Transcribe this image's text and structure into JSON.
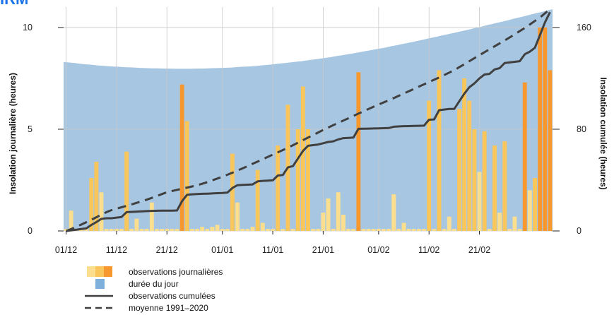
{
  "logo_text": "IRM",
  "colors": {
    "daylight": "#a7c6e2",
    "daylight_legend": "#7fb0dc",
    "bar_light": "#fbdf8f",
    "bar_medium": "#f9c65c",
    "bar_dark": "#f7982e",
    "cumulative": "#404040",
    "normal": "#404040",
    "grid": "#c8c8c8"
  },
  "legend": {
    "daily": "observations journalières",
    "daylength": "durée du jour",
    "cumulative": "observations cumulées",
    "normal": "moyenne 1991–2020"
  },
  "chart_data": {
    "type": "bar",
    "x_ticks": [
      "01/12",
      "11/12",
      "21/12",
      "01/01",
      "11/01",
      "21/01",
      "01/02",
      "11/02",
      "21/02"
    ],
    "x_tick_days": [
      0,
      10,
      20,
      31,
      41,
      51,
      62,
      72,
      82
    ],
    "ylabel": "Insolation journalière (heures)",
    "y2label": "Insolation cumulée (heures)",
    "ylim": [
      0,
      10.9
    ],
    "y2lim": [
      0,
      174.4
    ],
    "y_ticks": [
      0,
      5,
      10
    ],
    "y2_ticks": [
      0,
      80,
      160
    ],
    "grid": true,
    "daily_observations": [
      0.1,
      1.0,
      0.1,
      0.1,
      0.1,
      2.6,
      3.4,
      1.9,
      0.1,
      0.1,
      0.1,
      0.1,
      3.9,
      0.1,
      0.6,
      0.1,
      0.1,
      1.4,
      0.1,
      0.1,
      0.1,
      0.1,
      0.1,
      7.2,
      5.4,
      0.1,
      0.1,
      0.2,
      0.1,
      0.2,
      0.3,
      0.1,
      0.1,
      3.8,
      1.4,
      0.1,
      0.1,
      0.2,
      3.0,
      0.4,
      0.1,
      0.1,
      4.2,
      0.1,
      6.2,
      0.1,
      5.0,
      7.1,
      5.0,
      0.1,
      0.1,
      0.9,
      1.6,
      0.1,
      1.9,
      0.8,
      0.1,
      0.1,
      7.8,
      0.1,
      0.1,
      0.1,
      0.1,
      0.1,
      0.1,
      1.8,
      0.1,
      0.4,
      0.1,
      0.1,
      0.1,
      0.1,
      6.4,
      0.1,
      7.9,
      0.1,
      0.7,
      0.1,
      6.0,
      7.5,
      6.4,
      5.0,
      2.9,
      4.9,
      0.1,
      4.2,
      0.9,
      4.4,
      0.1,
      0.7,
      0.1,
      7.3,
      2.0,
      2.6,
      10.0,
      10.0,
      7.9
    ],
    "daylength": [
      8.3,
      8.28,
      8.25,
      8.22,
      8.19,
      8.17,
      8.14,
      8.12,
      8.1,
      8.08,
      8.07,
      8.05,
      8.04,
      8.03,
      8.01,
      8.0,
      7.99,
      7.99,
      7.98,
      7.98,
      7.97,
      7.97,
      7.97,
      7.97,
      7.98,
      7.98,
      7.99,
      8.0,
      8.01,
      8.02,
      8.03,
      8.05,
      8.07,
      8.08,
      8.1,
      8.12,
      8.15,
      8.17,
      8.2,
      8.23,
      8.26,
      8.29,
      8.32,
      8.35,
      8.39,
      8.43,
      8.46,
      8.5,
      8.54,
      8.59,
      8.63,
      8.68,
      8.72,
      8.77,
      8.82,
      8.87,
      8.92,
      8.97,
      9.02,
      9.08,
      9.13,
      9.19,
      9.24,
      9.3,
      9.36,
      9.42,
      9.48,
      9.54,
      9.6,
      9.66,
      9.72,
      9.78,
      9.84,
      9.9,
      9.97,
      10.03,
      10.1,
      10.16,
      10.23,
      10.29,
      10.36,
      10.43,
      10.49,
      10.56,
      10.63,
      10.7,
      10.76,
      10.83,
      10.9
    ],
    "cumulative_observations": [
      0,
      0.5,
      1.0,
      1.5,
      2.0,
      4.7,
      7.0,
      9.5,
      10.0,
      10.0,
      10.5,
      11.0,
      14.8,
      15.0,
      15.2,
      15.4,
      15.6,
      15.8,
      15.9,
      16.0,
      16.0,
      16.0,
      16.1,
      23.4,
      28.5,
      28.8,
      29.0,
      29.2,
      29.3,
      29.5,
      29.7,
      29.9,
      30.2,
      33.8,
      36.0,
      36.2,
      36.4,
      36.6,
      39.0,
      39.4,
      39.6,
      39.8,
      43.6,
      44.0,
      50.0,
      51.0,
      57.0,
      63.0,
      67.0,
      67.5,
      68.0,
      69.0,
      70.0,
      70.5,
      72.0,
      73.0,
      73.2,
      73.4,
      80.3,
      80.4,
      80.5,
      80.6,
      80.7,
      80.8,
      80.9,
      82.0,
      82.2,
      82.4,
      82.5,
      82.6,
      82.7,
      82.8,
      87.5,
      87.7,
      95.0,
      95.5,
      96.0,
      96.0,
      102.0,
      108.0,
      113.0,
      116.0,
      120.0,
      123.0,
      123.5,
      127.0,
      128.0,
      132.0,
      132.5,
      133.0,
      133.5,
      139.0,
      141.0,
      144.0,
      154.0,
      164.0,
      172.0
    ],
    "normal_cumulative": [
      0,
      1.5,
      3.2,
      5.0,
      6.9,
      8.8,
      10.8,
      12.8,
      14.8,
      16.4,
      17.5,
      18.6,
      19.8,
      20.9,
      22.1,
      23.3,
      24.6,
      26.0,
      27.4,
      29.0,
      30.5,
      31.4,
      32.3,
      33.2,
      34.1,
      35.0,
      36.0,
      37.1,
      38.4,
      39.8,
      41.2,
      42.7,
      44.2,
      45.8,
      47.5,
      49.2,
      51.0,
      52.8,
      54.6,
      56.4,
      58.2,
      60.0,
      61.8,
      63.6,
      65.5,
      67.4,
      69.4,
      71.4,
      73.4,
      75.4,
      77.4,
      79.4,
      81.3,
      83.2,
      85.0,
      86.8,
      88.6,
      90.4,
      92.3,
      94.1,
      95.9,
      97.7,
      99.4,
      101.1,
      102.8,
      104.5,
      106.3,
      108.1,
      109.9,
      111.7,
      113.5,
      115.3,
      117.1,
      118.9,
      120.7,
      122.6,
      124.5,
      126.4,
      128.8,
      131.1,
      133.5,
      135.9,
      138.2,
      140.6,
      142.9,
      145.2,
      147.5,
      149.8,
      152.2,
      154.7,
      157.2,
      159.7,
      162.4,
      165.1,
      167.8,
      171.2,
      174.4
    ]
  }
}
